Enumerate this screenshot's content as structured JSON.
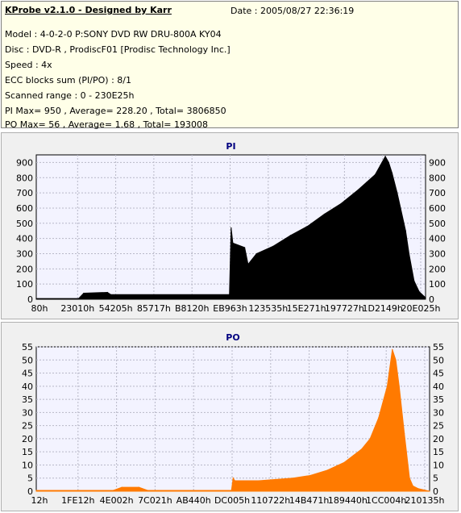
{
  "header": {
    "title": "KProbe v2.1.0 - Designed by Karr",
    "date": "Date : 2005/08/27 22:36:19",
    "lines": [
      "Model : 4-0-2-0 P:SONY    DVD RW DRU-800A  KY04",
      "Disc : DVD-R , ProdiscF01 [Prodisc Technology Inc.]",
      "Speed : 4x",
      "ECC blocks sum (PI/PO) : 8/1",
      "Scanned range : 0 - 230E25h",
      "PI Max= 950 , Average= 228.20 , Total= 3806850",
      "PO Max= 56 , Average= 1.68 , Total= 193008"
    ]
  },
  "chart_data": [
    {
      "type": "area",
      "title": "PI",
      "color": "#000000",
      "xlim": [
        0,
        2297381
      ],
      "ylim": [
        0,
        950
      ],
      "yticks": [
        0,
        100,
        200,
        300,
        400,
        500,
        600,
        700,
        800,
        900
      ],
      "xtick_labels": [
        "80h",
        "23010h",
        "54205h",
        "85717h",
        "B8120h",
        "EB963h",
        "123535h",
        "15E271h",
        "197727h",
        "1D2149h",
        "20E025h"
      ],
      "x": [
        0,
        250000,
        280000,
        420000,
        440000,
        1140000,
        1150000,
        1160000,
        1230000,
        1250000,
        1300000,
        1400000,
        1500000,
        1600000,
        1700000,
        1800000,
        1900000,
        1950000,
        2000000,
        2030000,
        2060000,
        2080000,
        2100000,
        2130000,
        2150000,
        2180000,
        2200000,
        2230000,
        2260000,
        2297381
      ],
      "values": [
        5,
        5,
        40,
        45,
        30,
        30,
        470,
        370,
        340,
        230,
        300,
        350,
        420,
        480,
        560,
        630,
        720,
        770,
        820,
        880,
        940,
        900,
        830,
        700,
        600,
        450,
        300,
        120,
        50,
        10
      ]
    },
    {
      "type": "area",
      "title": "PO",
      "color": "#ff7a00",
      "xlim": [
        0,
        2297381
      ],
      "ylim": [
        0,
        55
      ],
      "yticks": [
        0,
        5,
        10,
        15,
        20,
        25,
        30,
        35,
        40,
        45,
        50,
        55
      ],
      "xtick_labels": [
        "12h",
        "1FE12h",
        "4E002h",
        "7C021h",
        "AB440h",
        "DC005h",
        "110722h",
        "14B471h",
        "189440h",
        "1CC004h",
        "210135h"
      ],
      "x": [
        0,
        450000,
        500000,
        600000,
        650000,
        1140000,
        1150000,
        1160000,
        1300000,
        1500000,
        1600000,
        1700000,
        1800000,
        1900000,
        1950000,
        2000000,
        2050000,
        2080000,
        2100000,
        2120000,
        2150000,
        2180000,
        2200000,
        2230000,
        2297381
      ],
      "values": [
        0.3,
        0.3,
        1.5,
        1.5,
        0.3,
        0.3,
        5,
        4,
        4,
        5,
        6,
        8,
        11,
        16,
        20,
        28,
        40,
        54,
        50,
        40,
        22,
        5,
        2,
        1,
        0
      ]
    }
  ]
}
